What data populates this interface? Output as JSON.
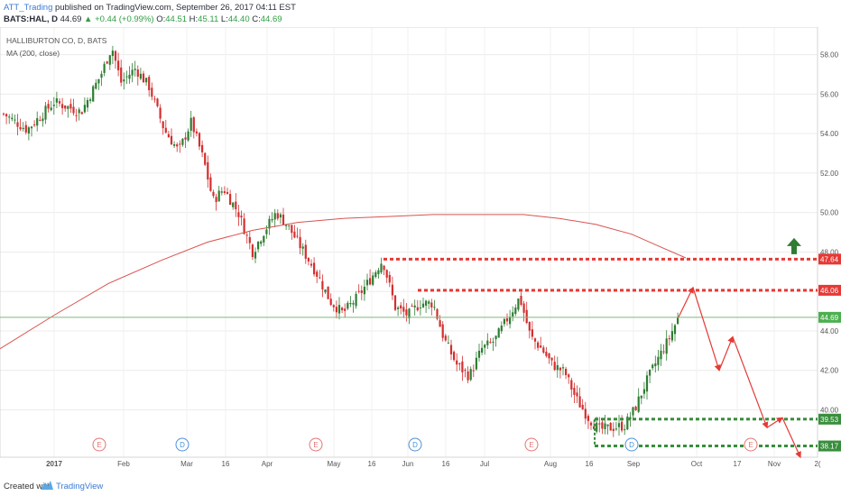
{
  "header": {
    "author": "ATT_Trading",
    "published": " published on TradingView.com, September 26, 2017 04:11 EST",
    "symbol": "BATS:HAL, D",
    "last": "44.69",
    "change": "▲ +0.44 (+0.99%)",
    "ohlc_o_label": "O:",
    "ohlc_o": "44.51",
    "ohlc_h_label": "H:",
    "ohlc_h": "45.11",
    "ohlc_l_label": "L:",
    "ohlc_l": "44.40",
    "ohlc_c_label": "C:",
    "ohlc_c": "44.69"
  },
  "legend": {
    "title": "HALLIBURTON CO, D, BATS",
    "ma": "MA (200, close)"
  },
  "footer": {
    "created": "Created with",
    "brand": "TradingView"
  },
  "colors": {
    "up": "#2e7d32",
    "down": "#d32f2f",
    "ma": "#d9534f",
    "resistance": "#e53935",
    "support": "#388e3c",
    "current_line": "#7fb97f",
    "axis_text": "#555555",
    "earnings": "#e57373",
    "dividend": "#4a90d9"
  },
  "chart_data": {
    "type": "candlestick",
    "symbol": "HAL",
    "title": "HALLIBURTON CO, D, BATS",
    "indicator": "MA (200, close)",
    "ylim": [
      37.6,
      59.4
    ],
    "yticks": [
      "58.00",
      "56.00",
      "54.00",
      "52.00",
      "50.00",
      "48.00",
      "46.00",
      "44.00",
      "42.00",
      "40.00"
    ],
    "xticks": [
      "2017",
      "Feb",
      "Mar",
      "16",
      "Apr",
      "May",
      "16",
      "Jun",
      "16",
      "Jul",
      "Aug",
      "16",
      "Sep",
      "Oct",
      "17",
      "Nov",
      "2("
    ],
    "current_price": 44.69,
    "price_labels": [
      {
        "value": "47.64",
        "kind": "resistance"
      },
      {
        "value": "46.06",
        "kind": "resistance"
      },
      {
        "value": "44.69",
        "kind": "current"
      },
      {
        "value": "39.53",
        "kind": "support"
      },
      {
        "value": "38.17",
        "kind": "support"
      }
    ],
    "levels": {
      "resistance": [
        47.64,
        46.06
      ],
      "support": [
        39.53,
        38.17
      ]
    },
    "ma_points": [
      [
        0,
        43.1
      ],
      [
        60,
        44.8
      ],
      [
        120,
        46.4
      ],
      [
        180,
        47.6
      ],
      [
        230,
        48.5
      ],
      [
        280,
        49.1
      ],
      [
        330,
        49.5
      ],
      [
        380,
        49.7
      ],
      [
        430,
        49.8
      ],
      [
        480,
        49.9
      ],
      [
        530,
        49.9
      ],
      [
        580,
        49.9
      ],
      [
        620,
        49.7
      ],
      [
        660,
        49.4
      ],
      [
        700,
        48.9
      ],
      [
        730,
        48.3
      ],
      [
        760,
        47.7
      ]
    ],
    "close_path": [
      [
        4,
        55.0
      ],
      [
        30,
        54.2
      ],
      [
        60,
        55.6
      ],
      [
        90,
        55.1
      ],
      [
        112,
        57.0
      ],
      [
        124,
        58.4
      ],
      [
        134,
        56.6
      ],
      [
        150,
        57.3
      ],
      [
        165,
        56.4
      ],
      [
        182,
        54.2
      ],
      [
        198,
        53.1
      ],
      [
        212,
        54.6
      ],
      [
        226,
        52.6
      ],
      [
        236,
        50.6
      ],
      [
        248,
        51.2
      ],
      [
        264,
        50.0
      ],
      [
        280,
        48.0
      ],
      [
        292,
        49.0
      ],
      [
        306,
        50.0
      ],
      [
        318,
        49.4
      ],
      [
        334,
        48.2
      ],
      [
        350,
        47.0
      ],
      [
        366,
        45.5
      ],
      [
        380,
        44.9
      ],
      [
        396,
        45.7
      ],
      [
        410,
        46.6
      ],
      [
        424,
        47.6
      ],
      [
        438,
        45.2
      ],
      [
        452,
        44.8
      ],
      [
        466,
        45.4
      ],
      [
        480,
        45.4
      ],
      [
        492,
        43.6
      ],
      [
        506,
        42.3
      ],
      [
        520,
        41.7
      ],
      [
        534,
        43.1
      ],
      [
        548,
        43.5
      ],
      [
        562,
        44.6
      ],
      [
        576,
        45.7
      ],
      [
        588,
        43.7
      ],
      [
        600,
        43.1
      ],
      [
        612,
        42.3
      ],
      [
        626,
        41.9
      ],
      [
        638,
        40.6
      ],
      [
        652,
        39.6
      ],
      [
        664,
        39.0
      ],
      [
        678,
        39.1
      ],
      [
        692,
        39.2
      ],
      [
        704,
        40.1
      ],
      [
        716,
        41.4
      ],
      [
        728,
        42.5
      ],
      [
        740,
        43.5
      ],
      [
        752,
        44.7
      ]
    ],
    "projection": [
      [
        752,
        44.7
      ],
      [
        768,
        46.2
      ],
      [
        797,
        42.0
      ],
      [
        812,
        43.7
      ],
      [
        850,
        39.1
      ],
      [
        867,
        39.6
      ],
      [
        887,
        37.6
      ]
    ],
    "breakout_arrow": {
      "x": 880,
      "price": 48.3
    },
    "events": [
      {
        "label": "E",
        "kind": "earnings",
        "x": 110
      },
      {
        "label": "D",
        "kind": "dividend",
        "x": 202
      },
      {
        "label": "E",
        "kind": "earnings",
        "x": 350
      },
      {
        "label": "D",
        "kind": "dividend",
        "x": 460
      },
      {
        "label": "E",
        "kind": "earnings",
        "x": 589
      },
      {
        "label": "D",
        "kind": "dividend",
        "x": 700
      },
      {
        "label": "E",
        "kind": "earnings",
        "x": 832
      }
    ]
  }
}
